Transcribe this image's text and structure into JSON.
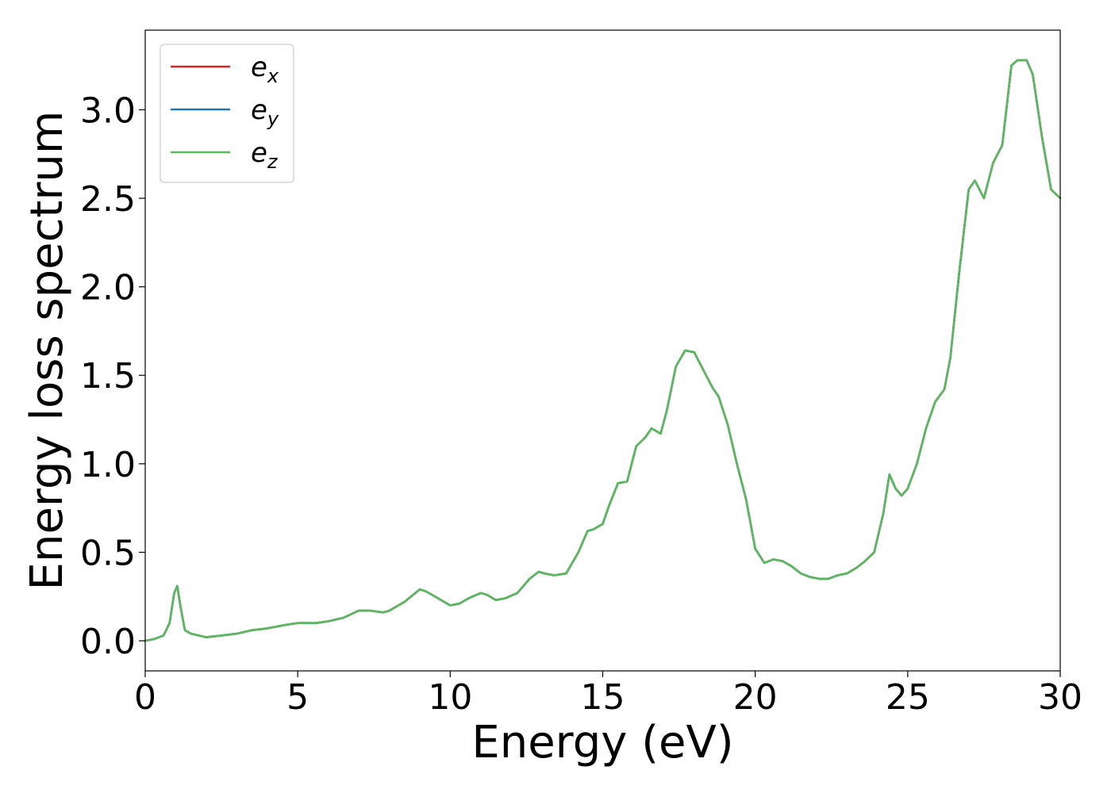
{
  "chart_data": {
    "type": "line",
    "title": "",
    "xlabel": "Energy (eV)",
    "ylabel": "Energy loss spectrum",
    "xlim": [
      0,
      30
    ],
    "ylim": [
      -0.17,
      3.45
    ],
    "xticks": [
      0,
      5,
      10,
      15,
      20,
      25,
      30
    ],
    "xtick_labels": [
      "0",
      "5",
      "10",
      "15",
      "20",
      "25",
      "30"
    ],
    "yticks": [
      0.0,
      0.5,
      1.0,
      1.5,
      2.0,
      2.5,
      3.0
    ],
    "ytick_labels": [
      "0.0",
      "0.5",
      "1.0",
      "1.5",
      "2.0",
      "2.5",
      "3.0"
    ],
    "grid": false,
    "legend_position": "top-left",
    "x": [
      0,
      0.3,
      0.6,
      0.8,
      0.95,
      1.05,
      1.15,
      1.3,
      1.5,
      2.0,
      2.5,
      3.0,
      3.5,
      4.0,
      4.3,
      4.6,
      5.0,
      5.3,
      5.6,
      6.0,
      6.5,
      7.0,
      7.4,
      7.8,
      8.0,
      8.5,
      9.0,
      9.2,
      9.4,
      9.7,
      10.0,
      10.3,
      10.6,
      11.0,
      11.2,
      11.5,
      11.8,
      12.2,
      12.6,
      12.9,
      13.1,
      13.4,
      13.8,
      14.2,
      14.5,
      14.7,
      15.0,
      15.2,
      15.5,
      15.8,
      16.1,
      16.4,
      16.6,
      16.9,
      17.1,
      17.4,
      17.7,
      18.0,
      18.3,
      18.6,
      18.8,
      19.1,
      19.4,
      19.7,
      20.0,
      20.3,
      20.6,
      20.9,
      21.2,
      21.5,
      21.8,
      22.1,
      22.4,
      22.7,
      23.0,
      23.3,
      23.6,
      23.9,
      24.2,
      24.4,
      24.6,
      24.8,
      25.0,
      25.3,
      25.6,
      25.9,
      26.2,
      26.4,
      26.7,
      27.0,
      27.2,
      27.5,
      27.8,
      28.1,
      28.4,
      28.6,
      28.9,
      29.1,
      29.4,
      29.7,
      30.0
    ],
    "series": [
      {
        "name": "e_x",
        "color": "#d62728",
        "values": [
          0.0,
          0.01,
          0.03,
          0.1,
          0.27,
          0.31,
          0.2,
          0.06,
          0.04,
          0.02,
          0.03,
          0.04,
          0.06,
          0.07,
          0.08,
          0.09,
          0.1,
          0.1,
          0.1,
          0.11,
          0.13,
          0.17,
          0.17,
          0.16,
          0.17,
          0.22,
          0.29,
          0.28,
          0.26,
          0.23,
          0.2,
          0.21,
          0.24,
          0.27,
          0.26,
          0.23,
          0.24,
          0.27,
          0.35,
          0.39,
          0.38,
          0.37,
          0.38,
          0.5,
          0.62,
          0.63,
          0.66,
          0.76,
          0.89,
          0.9,
          1.1,
          1.15,
          1.2,
          1.17,
          1.3,
          1.55,
          1.64,
          1.63,
          1.53,
          1.43,
          1.38,
          1.22,
          1.0,
          0.8,
          0.52,
          0.44,
          0.46,
          0.45,
          0.42,
          0.38,
          0.36,
          0.35,
          0.35,
          0.37,
          0.38,
          0.41,
          0.45,
          0.5,
          0.72,
          0.94,
          0.86,
          0.82,
          0.86,
          1.0,
          1.2,
          1.35,
          1.42,
          1.6,
          2.1,
          2.55,
          2.6,
          2.5,
          2.7,
          2.8,
          3.25,
          3.28,
          3.28,
          3.2,
          2.85,
          2.55,
          2.5
        ]
      },
      {
        "name": "e_y",
        "color": "#1f77b4",
        "values": [
          0.0,
          0.01,
          0.03,
          0.1,
          0.27,
          0.31,
          0.2,
          0.06,
          0.04,
          0.02,
          0.03,
          0.04,
          0.06,
          0.07,
          0.08,
          0.09,
          0.1,
          0.1,
          0.1,
          0.11,
          0.13,
          0.17,
          0.17,
          0.16,
          0.17,
          0.22,
          0.29,
          0.28,
          0.26,
          0.23,
          0.2,
          0.21,
          0.24,
          0.27,
          0.26,
          0.23,
          0.24,
          0.27,
          0.35,
          0.39,
          0.38,
          0.37,
          0.38,
          0.5,
          0.62,
          0.63,
          0.66,
          0.76,
          0.89,
          0.9,
          1.1,
          1.15,
          1.2,
          1.17,
          1.3,
          1.55,
          1.64,
          1.63,
          1.53,
          1.43,
          1.38,
          1.22,
          1.0,
          0.8,
          0.52,
          0.44,
          0.46,
          0.45,
          0.42,
          0.38,
          0.36,
          0.35,
          0.35,
          0.37,
          0.38,
          0.41,
          0.45,
          0.5,
          0.72,
          0.94,
          0.86,
          0.82,
          0.86,
          1.0,
          1.2,
          1.35,
          1.42,
          1.6,
          2.1,
          2.55,
          2.6,
          2.5,
          2.7,
          2.8,
          3.25,
          3.28,
          3.28,
          3.2,
          2.85,
          2.55,
          2.5
        ]
      },
      {
        "name": "e_z",
        "color": "#5cb85c",
        "values": [
          0.0,
          0.01,
          0.03,
          0.1,
          0.27,
          0.31,
          0.2,
          0.06,
          0.04,
          0.02,
          0.03,
          0.04,
          0.06,
          0.07,
          0.08,
          0.09,
          0.1,
          0.1,
          0.1,
          0.11,
          0.13,
          0.17,
          0.17,
          0.16,
          0.17,
          0.22,
          0.29,
          0.28,
          0.26,
          0.23,
          0.2,
          0.21,
          0.24,
          0.27,
          0.26,
          0.23,
          0.24,
          0.27,
          0.35,
          0.39,
          0.38,
          0.37,
          0.38,
          0.5,
          0.62,
          0.63,
          0.66,
          0.76,
          0.89,
          0.9,
          1.1,
          1.15,
          1.2,
          1.17,
          1.3,
          1.55,
          1.64,
          1.63,
          1.53,
          1.43,
          1.38,
          1.22,
          1.0,
          0.8,
          0.52,
          0.44,
          0.46,
          0.45,
          0.42,
          0.38,
          0.36,
          0.35,
          0.35,
          0.37,
          0.38,
          0.41,
          0.45,
          0.5,
          0.72,
          0.94,
          0.86,
          0.82,
          0.86,
          1.0,
          1.2,
          1.35,
          1.42,
          1.6,
          2.1,
          2.55,
          2.6,
          2.5,
          2.7,
          2.8,
          3.25,
          3.28,
          3.28,
          3.2,
          2.85,
          2.55,
          2.5
        ]
      }
    ],
    "legend": [
      {
        "base": "e",
        "sub": "x",
        "color": "#d62728"
      },
      {
        "base": "e",
        "sub": "y",
        "color": "#1f77b4"
      },
      {
        "base": "e",
        "sub": "z",
        "color": "#5cb85c"
      }
    ]
  }
}
